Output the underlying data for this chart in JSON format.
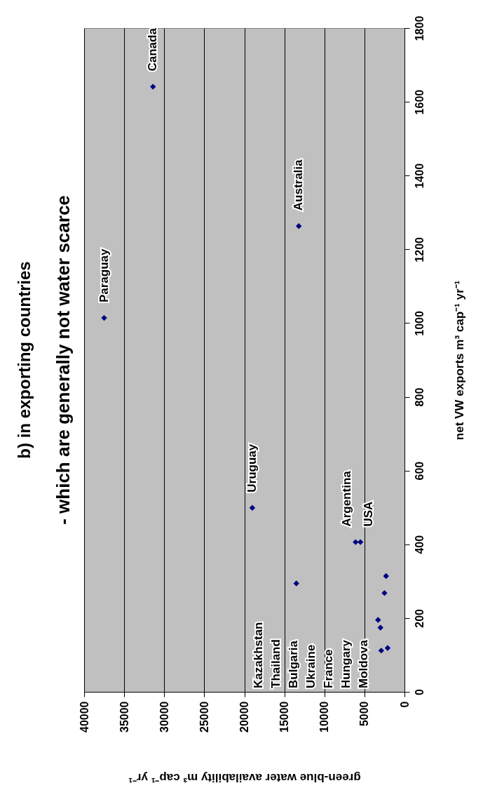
{
  "chart_data": {
    "type": "scatter",
    "title": "b) in exporting countries",
    "subtitle": "- which are generally not water scarce",
    "xlabel": "green-blue water availability m³ cap⁻¹ yr⁻¹",
    "ylabel": "net VW exports m³ cap⁻¹ yr⁻¹",
    "x": [
      31400,
      37500,
      13200,
      19000,
      13500,
      6100,
      5500,
      2300,
      2500,
      3300,
      3000,
      2900,
      2100
    ],
    "series": [
      {
        "color": "#000080",
        "values": [
          1641,
          1014,
          1263,
          499,
          294,
          406,
          406,
          314,
          268,
          195,
          174,
          112,
          119
        ]
      }
    ],
    "marker": "diamond",
    "xlim": [
      40000,
      0
    ],
    "xticks": [
      0,
      5000,
      10000,
      15000,
      20000,
      25000,
      30000,
      35000,
      40000
    ],
    "ylim": [
      0,
      1800
    ],
    "yticks": [
      0,
      200,
      400,
      600,
      800,
      1000,
      1200,
      1400,
      1600,
      1800
    ],
    "grid": "x",
    "annotations": [
      {
        "text": "Canada",
        "x": 31400,
        "y": 1641
      },
      {
        "text": "Paraguay",
        "x": 37500,
        "y": 1014
      },
      {
        "text": "Australia",
        "x": 13200,
        "y": 1263
      },
      {
        "text": "Uruguay",
        "x": 19000,
        "y": 499
      },
      {
        "text": "Argentina",
        "x": 6100,
        "y": 406
      },
      {
        "text": "USA",
        "x": 5500,
        "y": 406
      },
      "Kazakhstan",
      "Thailand",
      "Bulgaria",
      "Ukraine",
      "France",
      "Hungary",
      "Moldova"
    ]
  }
}
